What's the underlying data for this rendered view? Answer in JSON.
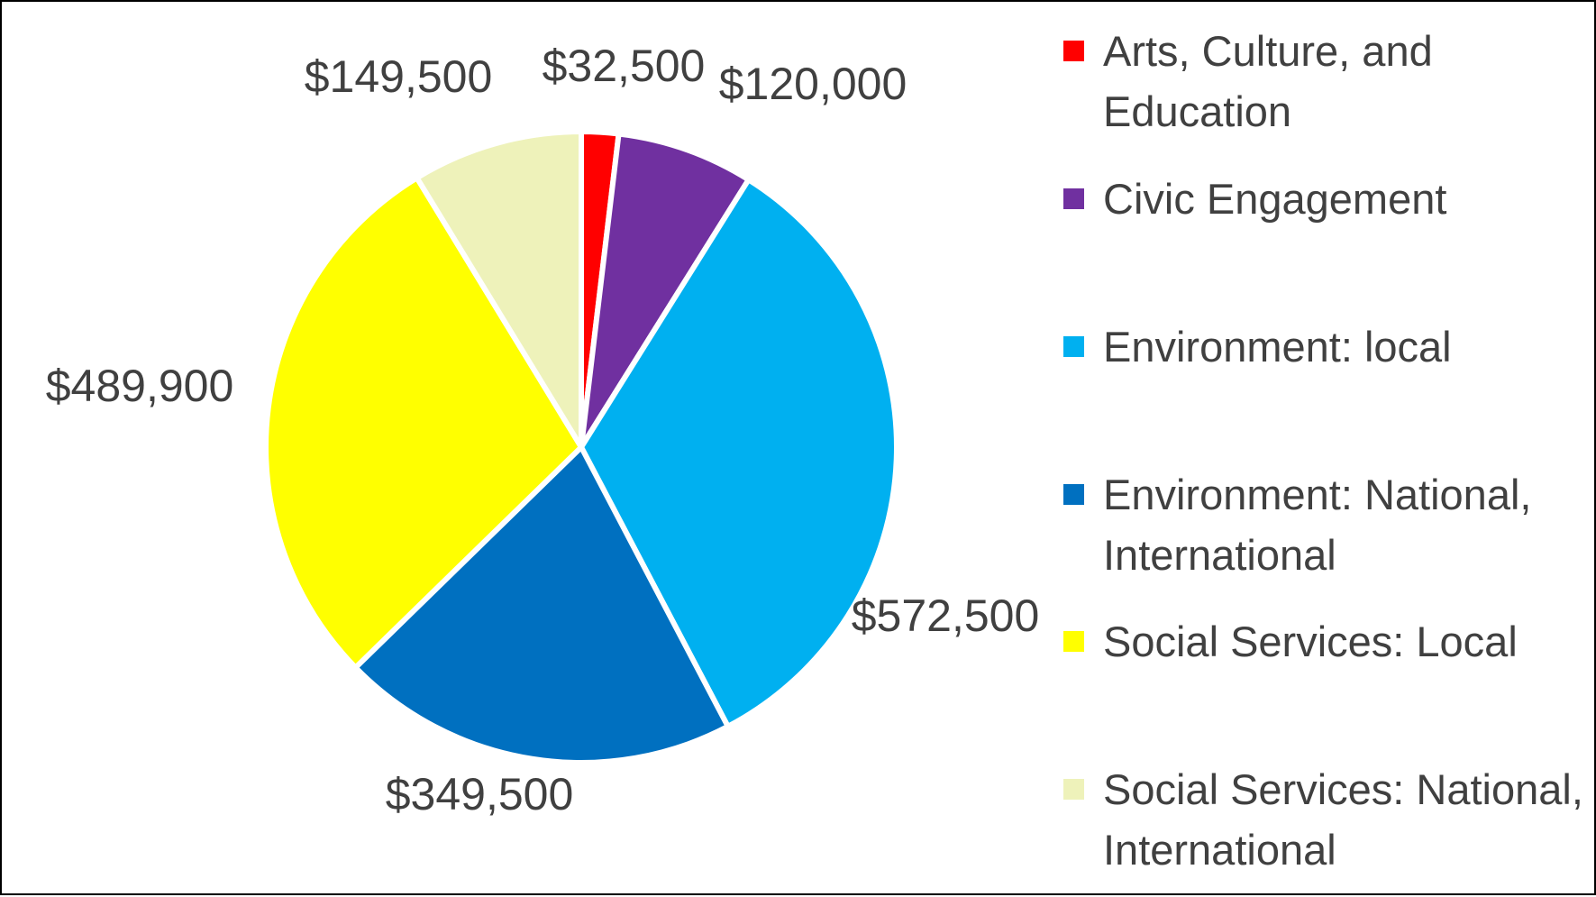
{
  "chart_data": {
    "type": "pie",
    "categories": [
      "Arts, Culture, and Education",
      "Civic Engagement",
      "Environment: local",
      "Environment: National, International",
      "Social Services: Local",
      "Social Services: National, International"
    ],
    "values": [
      32500,
      120000,
      572500,
      349500,
      489900,
      149500
    ],
    "data_labels": [
      "$32,500",
      "$120,000",
      "$572,500",
      "$349,500",
      "$489,900",
      "$149,500"
    ],
    "colors": [
      "#FF0000",
      "#7030A0",
      "#00B0F0",
      "#0070C0",
      "#FFFF00",
      "#EEF2BA"
    ],
    "legend_position": "right",
    "title": ""
  }
}
